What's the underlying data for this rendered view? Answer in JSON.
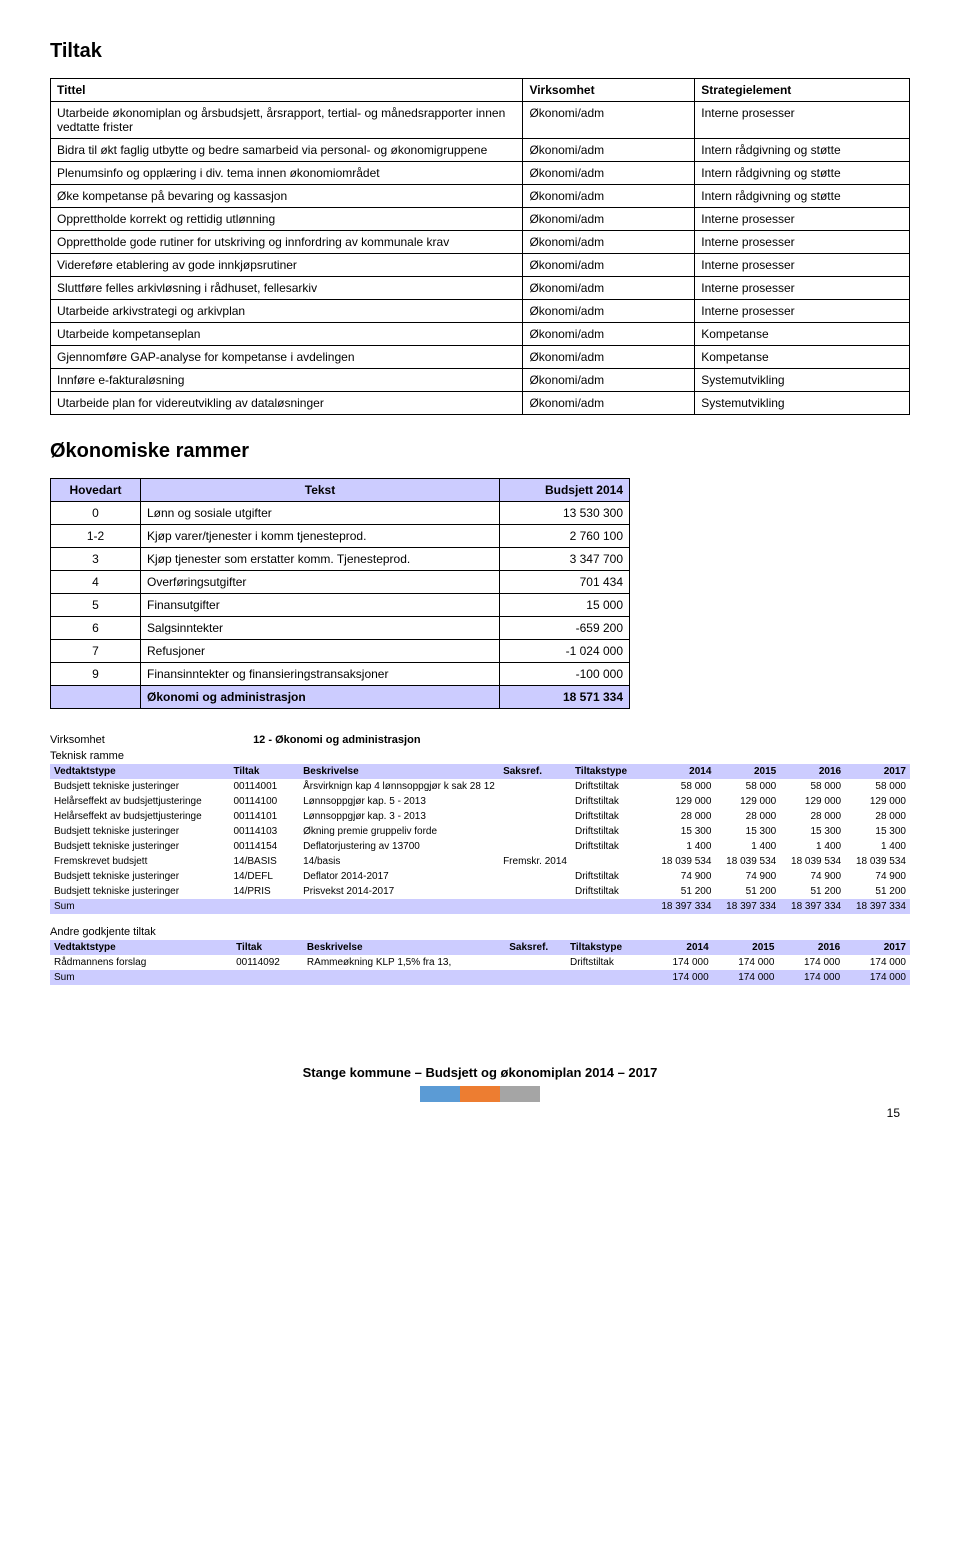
{
  "section1": {
    "title": "Tiltak"
  },
  "tiltak_table": {
    "headers": [
      "Tittel",
      "Virksomhet",
      "Strategielement"
    ],
    "rows": [
      [
        "Utarbeide økonomiplan og årsbudsjett, årsrapport, tertial- og månedsrapporter innen vedtatte frister",
        "Økonomi/adm",
        "Interne prosesser"
      ],
      [
        "Bidra til økt faglig utbytte og bedre samarbeid via personal- og økonomigruppene",
        "Økonomi/adm",
        "Intern rådgivning og støtte"
      ],
      [
        "Plenumsinfo og opplæring i div. tema innen økonomiområdet",
        "Økonomi/adm",
        "Intern rådgivning og støtte"
      ],
      [
        "Øke kompetanse på bevaring og kassasjon",
        "Økonomi/adm",
        "Intern rådgivning og støtte"
      ],
      [
        "Opprettholde korrekt og rettidig utlønning",
        "Økonomi/adm",
        "Interne prosesser"
      ],
      [
        "Opprettholde gode rutiner for utskriving og innfordring av kommunale krav",
        "Økonomi/adm",
        "Interne prosesser"
      ],
      [
        "Videreføre etablering av gode innkjøpsrutiner",
        "Økonomi/adm",
        "Interne prosesser"
      ],
      [
        "Sluttføre felles arkivløsning i rådhuset, fellesarkiv",
        "Økonomi/adm",
        "Interne prosesser"
      ],
      [
        "Utarbeide arkivstrategi og arkivplan",
        "Økonomi/adm",
        "Interne prosesser"
      ],
      [
        "Utarbeide kompetanseplan",
        "Økonomi/adm",
        "Kompetanse"
      ],
      [
        "Gjennomføre GAP-analyse for kompetanse i avdelingen",
        "Økonomi/adm",
        "Kompetanse"
      ],
      [
        "Innføre e-fakturaløsning",
        "Økonomi/adm",
        "Systemutvikling"
      ],
      [
        "Utarbeide plan for videreutvikling av  dataløsninger",
        "Økonomi/adm",
        "Systemutvikling"
      ]
    ]
  },
  "section2": {
    "title": "Økonomiske rammer"
  },
  "hovedart_table": {
    "headers": [
      "Hovedart",
      "Tekst",
      "Budsjett 2014"
    ],
    "rows": [
      [
        "0",
        "Lønn og sosiale utgifter",
        "13 530 300"
      ],
      [
        "1-2",
        "Kjøp varer/tjenester i komm tjenesteprod.",
        "2 760 100"
      ],
      [
        "3",
        "Kjøp tjenester som erstatter komm. Tjenesteprod.",
        "3 347 700"
      ],
      [
        "4",
        "Overføringsutgifter",
        "701 434"
      ],
      [
        "5",
        "Finansutgifter",
        "15 000"
      ],
      [
        "6",
        "Salgsinntekter",
        "-659 200"
      ],
      [
        "7",
        "Refusjoner",
        "-1 024 000"
      ],
      [
        "9",
        "Finansinntekter og finansieringstransaksjoner",
        "-100 000"
      ]
    ],
    "total": [
      "",
      "Økonomi og administrasjon",
      "18 571 334"
    ]
  },
  "virksomhet": {
    "label": "Virksomhet",
    "value": "12 - Økonomi og administrasjon",
    "teknisk": "Teknisk ramme"
  },
  "detail1": {
    "headers": [
      "Vedtaktstype",
      "Tiltak",
      "Beskrivelse",
      "Saksref.",
      "Tiltakstype",
      "2014",
      "2015",
      "2016",
      "2017"
    ],
    "rows": [
      [
        "Budsjett tekniske justeringer",
        "00114001",
        "Årsvirknign kap 4 lønnsoppgjør k sak 28 12",
        "",
        "Driftstiltak",
        "58 000",
        "58 000",
        "58 000",
        "58 000"
      ],
      [
        "Helårseffekt av budsjettjusteringe",
        "00114100",
        "Lønnsoppgjør kap. 5 - 2013",
        "",
        "Driftstiltak",
        "129 000",
        "129 000",
        "129 000",
        "129 000"
      ],
      [
        "Helårseffekt av budsjettjusteringe",
        "00114101",
        "Lønnsoppgjør kap. 3 - 2013",
        "",
        "Driftstiltak",
        "28 000",
        "28 000",
        "28 000",
        "28 000"
      ],
      [
        "Budsjett tekniske justeringer",
        "00114103",
        "Økning premie gruppeliv forde",
        "",
        "Driftstiltak",
        "15 300",
        "15 300",
        "15 300",
        "15 300"
      ],
      [
        "Budsjett tekniske justeringer",
        "00114154",
        "Deflatorjustering av 13700",
        "",
        "Driftstiltak",
        "1 400",
        "1 400",
        "1 400",
        "1 400"
      ],
      [
        "Fremskrevet budsjett",
        "14/BASIS",
        "14/basis",
        "Fremskr. 2014",
        "",
        "18 039 534",
        "18 039 534",
        "18 039 534",
        "18 039 534"
      ],
      [
        "Budsjett tekniske justeringer",
        "14/DEFL",
        "Deflator 2014-2017",
        "",
        "Driftstiltak",
        "74 900",
        "74 900",
        "74 900",
        "74 900"
      ],
      [
        "Budsjett tekniske justeringer",
        "14/PRIS",
        "Prisvekst 2014-2017",
        "",
        "Driftstiltak",
        "51 200",
        "51 200",
        "51 200",
        "51 200"
      ]
    ],
    "sum": [
      "Sum",
      "",
      "",
      "",
      "",
      "18 397 334",
      "18 397 334",
      "18 397 334",
      "18 397 334"
    ]
  },
  "andre": {
    "label": "Andre godkjente tiltak"
  },
  "detail2": {
    "headers": [
      "Vedtaktstype",
      "Tiltak",
      "Beskrivelse",
      "Saksref.",
      "Tiltakstype",
      "2014",
      "2015",
      "2016",
      "2017"
    ],
    "rows": [
      [
        "Rådmannens forslag",
        "00114092",
        "RAmmeøkning KLP 1,5% fra 13,",
        "",
        "Driftstiltak",
        "174 000",
        "174 000",
        "174 000",
        "174 000"
      ]
    ],
    "sum": [
      "Sum",
      "",
      "",
      "",
      "",
      "174 000",
      "174 000",
      "174 000",
      "174 000"
    ]
  },
  "footer": {
    "text": "Stange kommune – Budsjett og økonomiplan 2014 – 2017",
    "page": "15",
    "bar_colors": [
      "#5b9bd5",
      "#ed7d31",
      "#a5a5a5"
    ]
  }
}
